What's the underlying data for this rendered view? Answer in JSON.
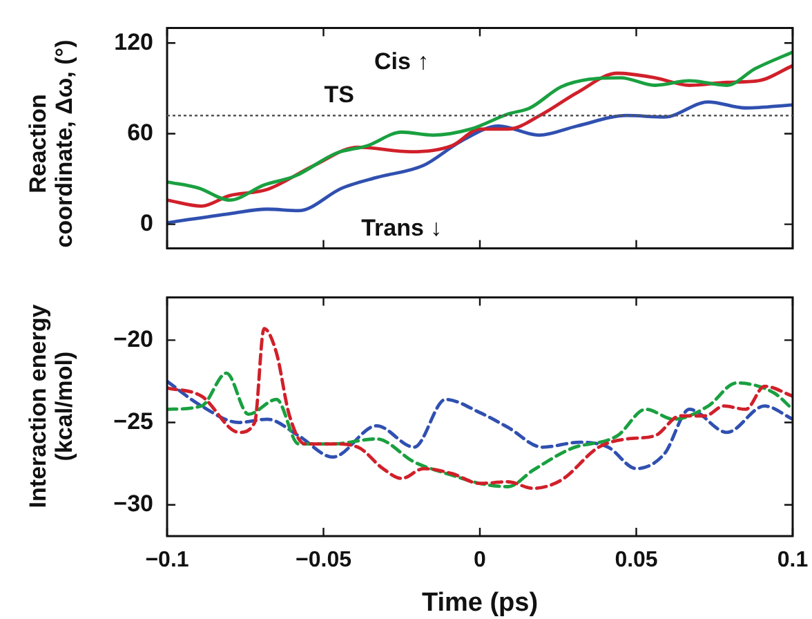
{
  "chart_data": [
    {
      "type": "line",
      "ylabel": "Reaction coordinate, Δω, (°)",
      "xlim": [
        -0.1,
        0.1
      ],
      "xticks": [
        -0.1,
        -0.05,
        0,
        0.05,
        0.1
      ],
      "ylim": [
        -16,
        130
      ],
      "yticks": [
        0,
        60,
        120
      ],
      "tick_labels": "y",
      "grid": false,
      "legend": false,
      "line_style": "solid",
      "marker": "none",
      "ref_lines": [
        {
          "axis": "y",
          "value": 72,
          "label": "TS",
          "color": "#555555",
          "line_style": "dotted"
        }
      ],
      "annotations": [
        "Cis ↑",
        "Trans ↓"
      ],
      "series": [
        {
          "color": "#1aa040",
          "x": [
            -0.1,
            -0.09,
            -0.08,
            -0.069,
            -0.059,
            -0.046,
            -0.036,
            -0.025,
            -0.015,
            -0.003,
            0.009,
            0.016,
            0.026,
            0.035,
            0.045,
            0.056,
            0.067,
            0.079,
            0.088,
            0.1
          ],
          "values": [
            28,
            24,
            16,
            26,
            32,
            47,
            52,
            61,
            59,
            63,
            73,
            77,
            91,
            96,
            97,
            92,
            95,
            92,
            103,
            114
          ]
        },
        {
          "color": "#d0202a",
          "x": [
            -0.1,
            -0.089,
            -0.08,
            -0.068,
            -0.053,
            -0.039,
            -0.022,
            -0.009,
            0,
            0.009,
            0.02,
            0.031,
            0.044,
            0.056,
            0.067,
            0.079,
            0.089,
            0.1
          ],
          "values": [
            16,
            12,
            19,
            23,
            39,
            51,
            48,
            52,
            63,
            63,
            73,
            87,
            100,
            97,
            92,
            94,
            95,
            105
          ]
        },
        {
          "color": "#3050b0",
          "x": [
            -0.1,
            -0.08,
            -0.068,
            -0.058,
            -0.044,
            -0.033,
            -0.018,
            -0.006,
            0.006,
            0.019,
            0.031,
            0.047,
            0.059,
            0.073,
            0.085,
            0.1
          ],
          "values": [
            1,
            7,
            10,
            9,
            24,
            31,
            39,
            55,
            65,
            59,
            65,
            72,
            71,
            81,
            77,
            79
          ]
        }
      ]
    },
    {
      "type": "line",
      "xlabel": "Time (ps)",
      "ylabel": "Interaction energy (kcal/mol)",
      "xlim": [
        -0.1,
        0.1
      ],
      "xticks": [
        -0.1,
        -0.05,
        0,
        0.05,
        0.1
      ],
      "ylim": [
        -31.9,
        -17.4
      ],
      "yticks": [
        -30,
        -25,
        -20
      ],
      "grid": false,
      "legend": false,
      "line_style": "dashed",
      "marker": "none",
      "series": [
        {
          "color": "#d0202a",
          "x": [
            -0.1,
            -0.089,
            -0.077,
            -0.072,
            -0.069,
            -0.065,
            -0.061,
            -0.056,
            -0.047,
            -0.039,
            -0.031,
            -0.025,
            -0.018,
            -0.009,
            0,
            0.009,
            0.017,
            0.026,
            0.038,
            0.047,
            0.056,
            0.064,
            0.072,
            0.078,
            0.085,
            0.091,
            0.1
          ],
          "values": [
            -22.9,
            -23.4,
            -25.6,
            -25,
            -19.3,
            -20.8,
            -24.5,
            -26.3,
            -26.3,
            -26.5,
            -27.8,
            -28.4,
            -27.8,
            -28.1,
            -28.7,
            -28.6,
            -29,
            -28.5,
            -26.5,
            -26,
            -25.8,
            -24.6,
            -24.6,
            -24,
            -24.2,
            -22.8,
            -23.4
          ]
        },
        {
          "color": "#1aa040",
          "x": [
            -0.1,
            -0.089,
            -0.081,
            -0.074,
            -0.065,
            -0.058,
            -0.047,
            -0.033,
            -0.021,
            -0.009,
            0,
            0.009,
            0.017,
            0.029,
            0.044,
            0.053,
            0.062,
            0.073,
            0.082,
            0.094,
            0.1
          ],
          "values": [
            -24.2,
            -24,
            -22,
            -24.5,
            -23.6,
            -26.3,
            -26.3,
            -26,
            -27.4,
            -28.2,
            -28.7,
            -28.9,
            -27.9,
            -26.6,
            -25.8,
            -24.2,
            -24.8,
            -24,
            -22.6,
            -23.2,
            -24.2
          ]
        },
        {
          "color": "#3050b0",
          "x": [
            -0.1,
            -0.089,
            -0.077,
            -0.068,
            -0.058,
            -0.047,
            -0.033,
            -0.021,
            -0.011,
            0,
            0.009,
            0.02,
            0.032,
            0.041,
            0.05,
            0.059,
            0.067,
            0.079,
            0.091,
            0.1
          ],
          "values": [
            -22.5,
            -24,
            -25,
            -24.8,
            -25.8,
            -27.1,
            -25.2,
            -26.5,
            -23.6,
            -24.4,
            -25.3,
            -26.5,
            -26.2,
            -26.5,
            -27.8,
            -26.9,
            -24.2,
            -25.6,
            -24,
            -24.8
          ]
        }
      ]
    }
  ]
}
